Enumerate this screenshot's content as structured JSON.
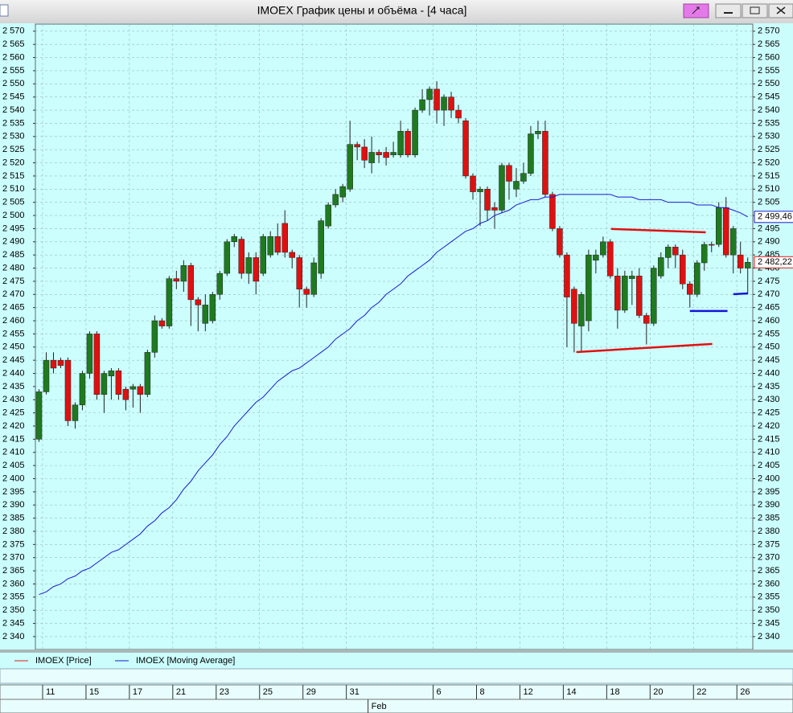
{
  "chart_data": {
    "type": "candlestick",
    "title": "IMOEX График цены и объёма - [4 часа]",
    "xlim": [
      -0.5,
      98.7
    ],
    "ylim": [
      2335.1,
      2572.7
    ],
    "grid": true,
    "yticks": [
      {
        "value": 2340,
        "label": "2 340"
      },
      {
        "value": 2345,
        "label": "2 345"
      },
      {
        "value": 2350,
        "label": "2 350"
      },
      {
        "value": 2355,
        "label": "2 355"
      },
      {
        "value": 2360,
        "label": "2 360"
      },
      {
        "value": 2365,
        "label": "2 365"
      },
      {
        "value": 2370,
        "label": "2 370"
      },
      {
        "value": 2375,
        "label": "2 375"
      },
      {
        "value": 2380,
        "label": "2 380"
      },
      {
        "value": 2385,
        "label": "2 385"
      },
      {
        "value": 2390,
        "label": "2 390"
      },
      {
        "value": 2395,
        "label": "2 395"
      },
      {
        "value": 2400,
        "label": "2 400"
      },
      {
        "value": 2405,
        "label": "2 405"
      },
      {
        "value": 2410,
        "label": "2 410"
      },
      {
        "value": 2415,
        "label": "2 415"
      },
      {
        "value": 2420,
        "label": "2 420"
      },
      {
        "value": 2425,
        "label": "2 425"
      },
      {
        "value": 2430,
        "label": "2 430"
      },
      {
        "value": 2435,
        "label": "2 435"
      },
      {
        "value": 2440,
        "label": "2 440"
      },
      {
        "value": 2445,
        "label": "2 445"
      },
      {
        "value": 2450,
        "label": "2 450"
      },
      {
        "value": 2455,
        "label": "2 455"
      },
      {
        "value": 2460,
        "label": "2 460"
      },
      {
        "value": 2465,
        "label": "2 465"
      },
      {
        "value": 2470,
        "label": "2 470"
      },
      {
        "value": 2475,
        "label": "2 475"
      },
      {
        "value": 2480,
        "label": "2 480"
      },
      {
        "value": 2485,
        "label": "2 485"
      },
      {
        "value": 2490,
        "label": "2 490"
      },
      {
        "value": 2495,
        "label": "2 495"
      },
      {
        "value": 2500,
        "label": "2 500"
      },
      {
        "value": 2505,
        "label": "2 505"
      },
      {
        "value": 2510,
        "label": "2 510"
      },
      {
        "value": 2515,
        "label": "2 515"
      },
      {
        "value": 2520,
        "label": "2 520"
      },
      {
        "value": 2525,
        "label": "2 525"
      },
      {
        "value": 2530,
        "label": "2 530"
      },
      {
        "value": 2535,
        "label": "2 535"
      },
      {
        "value": 2540,
        "label": "2 540"
      },
      {
        "value": 2545,
        "label": "2 545"
      },
      {
        "value": 2550,
        "label": "2 550"
      },
      {
        "value": 2555,
        "label": "2 555"
      },
      {
        "value": 2560,
        "label": "2 560"
      },
      {
        "value": 2565,
        "label": "2 565"
      },
      {
        "value": 2570,
        "label": "2 570"
      }
    ],
    "xticks": [
      {
        "value": 1,
        "label": "11"
      },
      {
        "value": 7,
        "label": "15"
      },
      {
        "value": 13,
        "label": "17"
      },
      {
        "value": 19,
        "label": "21"
      },
      {
        "value": 25,
        "label": "23"
      },
      {
        "value": 31,
        "label": "25"
      },
      {
        "value": 37,
        "label": "29"
      },
      {
        "value": 43,
        "label": "31"
      },
      {
        "value": 55,
        "label": "6"
      },
      {
        "value": 61,
        "label": "8"
      },
      {
        "value": 67,
        "label": "12"
      },
      {
        "value": 73,
        "label": "14"
      },
      {
        "value": 79,
        "label": "18"
      },
      {
        "value": 85,
        "label": "20"
      },
      {
        "value": 91,
        "label": "22"
      },
      {
        "value": 97,
        "label": "26"
      }
    ],
    "month_ticks": [
      {
        "value": 46,
        "label": "Feb"
      }
    ],
    "series": [
      {
        "name": "IMOEX [Price]",
        "color": "#e31c1c",
        "up_color": "#1f7a1f",
        "down_color": "#e01010",
        "last_label": {
          "value": 2482.22,
          "label": "2 482,22"
        },
        "open": [
          2415,
          2433,
          2445,
          2445,
          2445,
          2422,
          2428,
          2440,
          2455,
          2432,
          2439,
          2441,
          2434,
          2434,
          2435,
          2432,
          2448,
          2460,
          2458,
          2476,
          2475,
          2481,
          2468,
          2459,
          2460,
          2470,
          2478,
          2490,
          2491,
          2478,
          2484,
          2478,
          2485,
          2492,
          2497,
          2486,
          2484,
          2472,
          2470,
          2478,
          2496,
          2504,
          2507,
          2510,
          2527,
          2526,
          2520,
          2524,
          2524,
          2523,
          2523,
          2532,
          2523,
          2540,
          2544,
          2548,
          2540,
          2545,
          2540,
          2536,
          2515,
          2509,
          2510,
          2503,
          2502,
          2519,
          2510,
          2513,
          2516,
          2531,
          2532,
          2508,
          2495,
          2485,
          2472,
          2458,
          2460,
          2483,
          2485,
          2490,
          2477,
          2464,
          2476,
          2477,
          2462,
          2459,
          2477,
          2484,
          2488,
          2485,
          2474,
          2470,
          2482,
          2489,
          2489,
          2503,
          2485,
          2485,
          2480
        ],
        "high": [
          2434,
          2448,
          2448,
          2446,
          2446,
          2429,
          2441,
          2456,
          2456,
          2441,
          2442,
          2442,
          2435,
          2436,
          2436,
          2449,
          2462,
          2461,
          2477,
          2479,
          2483,
          2482,
          2469,
          2470,
          2471,
          2479,
          2491,
          2493,
          2492,
          2486,
          2486,
          2493,
          2494,
          2497,
          2502,
          2487,
          2485,
          2473,
          2484,
          2499,
          2505,
          2510,
          2512,
          2536,
          2528,
          2529,
          2530,
          2525,
          2526,
          2528,
          2536,
          2533,
          2541,
          2548,
          2549,
          2551,
          2546,
          2547,
          2542,
          2537,
          2516,
          2511,
          2511,
          2505,
          2520,
          2520,
          2518,
          2520,
          2534,
          2536,
          2536,
          2509,
          2496,
          2486,
          2473,
          2471,
          2487,
          2487,
          2492,
          2491,
          2480,
          2479,
          2479,
          2480,
          2463,
          2481,
          2486,
          2489,
          2489,
          2487,
          2475,
          2483,
          2490,
          2490,
          2505,
          2507,
          2496,
          2490,
          2484
        ],
        "low": [
          2414,
          2432,
          2440,
          2442,
          2420,
          2419,
          2426,
          2438,
          2430,
          2425,
          2430,
          2430,
          2426,
          2427,
          2425,
          2431,
          2446,
          2457,
          2457,
          2472,
          2471,
          2458,
          2456,
          2456,
          2459,
          2468,
          2477,
          2488,
          2476,
          2474,
          2470,
          2477,
          2484,
          2485,
          2484,
          2480,
          2465,
          2465,
          2469,
          2476,
          2495,
          2503,
          2505,
          2509,
          2521,
          2518,
          2516,
          2520,
          2519,
          2522,
          2522,
          2522,
          2522,
          2539,
          2538,
          2535,
          2534,
          2537,
          2535,
          2514,
          2506,
          2496,
          2498,
          2495,
          2501,
          2506,
          2507,
          2512,
          2515,
          2529,
          2507,
          2494,
          2484,
          2450,
          2448,
          2448,
          2456,
          2478,
          2484,
          2476,
          2457,
          2463,
          2466,
          2461,
          2451,
          2458,
          2476,
          2480,
          2480,
          2472,
          2465,
          2469,
          2479,
          2486,
          2488,
          2484,
          2478,
          2478,
          2470
        ],
        "close": [
          2433,
          2445,
          2442,
          2443,
          2422,
          2428,
          2440,
          2455,
          2432,
          2440,
          2441,
          2432,
          2430,
          2435,
          2432,
          2448,
          2460,
          2458,
          2476,
          2475,
          2481,
          2468,
          2466,
          2466,
          2470,
          2478,
          2490,
          2492,
          2478,
          2484,
          2475,
          2492,
          2492,
          2486,
          2486,
          2484,
          2472,
          2470,
          2482,
          2498,
          2504,
          2508,
          2511,
          2527,
          2526,
          2521,
          2524,
          2523,
          2522,
          2524,
          2532,
          2523,
          2540,
          2544,
          2548,
          2540,
          2545,
          2540,
          2537,
          2515,
          2509,
          2510,
          2502,
          2502,
          2519,
          2513,
          2513,
          2516,
          2531,
          2532,
          2508,
          2495,
          2485,
          2469,
          2459,
          2470,
          2485,
          2485,
          2490,
          2477,
          2464,
          2477,
          2477,
          2462,
          2459,
          2480,
          2484,
          2488,
          2485,
          2474,
          2470,
          2482,
          2489,
          2489,
          2503,
          2485,
          2495,
          2480,
          2482.22
        ]
      },
      {
        "name": "IMOEX [Moving Average]",
        "color": "#1a1ad0",
        "last_label": {
          "value": 2499.46,
          "label": "2 499,46"
        },
        "values": [
          2356,
          2357,
          2359,
          2360,
          2362,
          2363,
          2365,
          2366,
          2368,
          2370,
          2372,
          2373,
          2375,
          2377,
          2379,
          2382,
          2384,
          2387,
          2389,
          2392,
          2396,
          2399,
          2403,
          2406,
          2409,
          2413,
          2416,
          2420,
          2423,
          2426,
          2429,
          2431,
          2434,
          2437,
          2439,
          2441,
          2442,
          2444,
          2446,
          2448,
          2450,
          2453,
          2455,
          2457,
          2460,
          2462,
          2465,
          2467,
          2470,
          2472,
          2474,
          2477,
          2479,
          2481,
          2483,
          2486,
          2488,
          2490,
          2492,
          2494,
          2495,
          2497,
          2498,
          2500,
          2501,
          2502,
          2504,
          2505,
          2506,
          2506,
          2507,
          2507,
          2508,
          2508,
          2508,
          2508,
          2508,
          2508,
          2508,
          2508,
          2507,
          2507,
          2507,
          2506,
          2506,
          2506,
          2506,
          2505,
          2505,
          2505,
          2505,
          2504,
          2504,
          2504,
          2503,
          2503,
          2502,
          2501,
          2499.46
        ]
      }
    ],
    "drawings": [
      {
        "color": "#e01010",
        "x": [
          79.1,
          92.2
        ],
        "y": [
          2494.9,
          2493.6
        ]
      },
      {
        "color": "#e01010",
        "x": [
          74.3,
          93.1
        ],
        "y": [
          2448.1,
          2451.2
        ]
      },
      {
        "color": "#1515d8",
        "x": [
          90,
          95.2
        ],
        "y": [
          2463.7,
          2463.7
        ]
      },
      {
        "color": "#1515d8",
        "x": [
          96,
          98
        ],
        "y": [
          2470.1,
          2470.4
        ]
      }
    ]
  }
}
